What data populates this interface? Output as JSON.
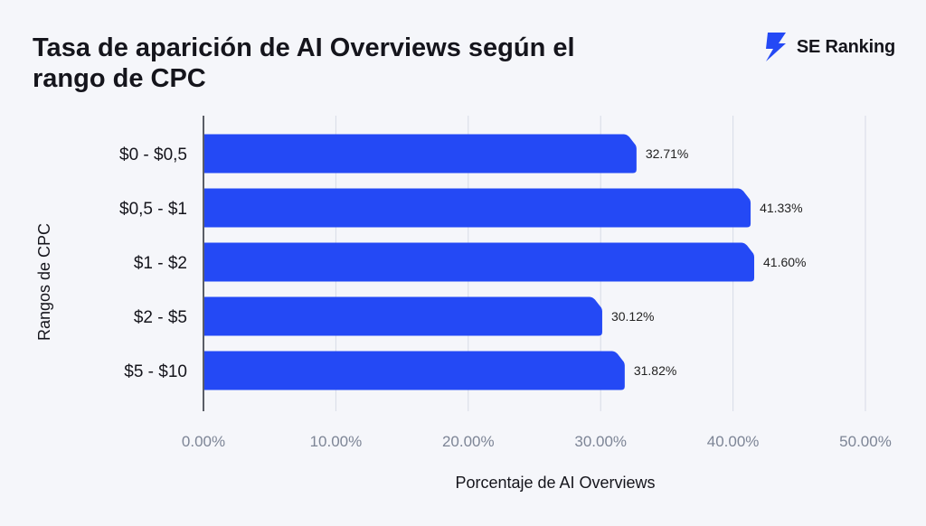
{
  "title": "Tasa de aparición de AI Overviews según el rango de CPC",
  "brand": {
    "name": "SE Ranking",
    "logo_icon": "lightning-bolt-icon"
  },
  "colors": {
    "bar": "#2449f5",
    "grid": "#d8dbe6",
    "axis": "#5a5d66",
    "tick": "#7d8596"
  },
  "chart_data": {
    "type": "bar",
    "orientation": "horizontal",
    "categories": [
      "$0 - $0,5",
      "$0,5 - $1",
      "$1 - $2",
      "$2 - $5",
      "$5 - $10"
    ],
    "values": [
      32.71,
      41.33,
      41.6,
      30.12,
      31.82
    ],
    "value_labels": [
      "32.71%",
      "41.33%",
      "41.60%",
      "30.12%",
      "31.82%"
    ],
    "xlabel": "Porcentaje de AI Overviews",
    "ylabel": "Rangos de CPC",
    "xlim": [
      0,
      50
    ],
    "xticks": [
      0,
      10,
      20,
      30,
      40,
      50
    ],
    "xtick_labels": [
      "0.00%",
      "10.00%",
      "20.00%",
      "30.00%",
      "40.00%",
      "50.00%"
    ],
    "grid": true,
    "legend": "none"
  }
}
